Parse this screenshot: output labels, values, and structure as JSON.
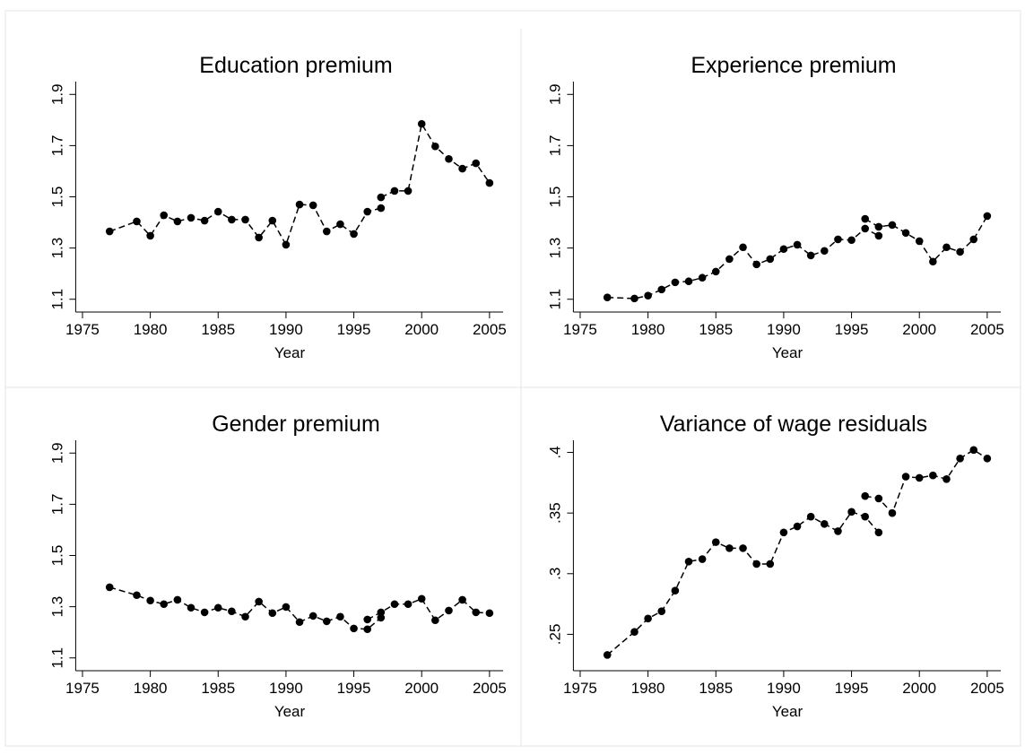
{
  "chart_data": [
    {
      "type": "line",
      "title": "Education premium",
      "x_label": "Year",
      "x": [
        1977,
        1979,
        1980,
        1981,
        1982,
        1983,
        1984,
        1985,
        1986,
        1987,
        1988,
        1989,
        1990,
        1991,
        1992,
        1993,
        1994,
        1995,
        1996,
        1997,
        null,
        1997,
        1998,
        1999,
        2000,
        2001,
        2002,
        2003,
        2004,
        2005
      ],
      "values": [
        1.365,
        1.404,
        1.348,
        1.428,
        1.404,
        1.418,
        1.407,
        1.442,
        1.411,
        1.411,
        1.341,
        1.407,
        1.313,
        1.47,
        1.467,
        1.365,
        1.393,
        1.355,
        1.442,
        1.456,
        null,
        1.498,
        1.523,
        1.523,
        1.785,
        1.697,
        1.648,
        1.61,
        1.631,
        1.554
      ],
      "color": "#000000",
      "xlim": [
        1974.5,
        2006
      ],
      "xticks": [
        1975,
        1980,
        1985,
        1990,
        1995,
        2000,
        2005
      ],
      "ylim": [
        1.05,
        1.95
      ],
      "yticks": [
        1.1,
        1.3,
        1.5,
        1.7,
        1.9
      ]
    },
    {
      "type": "line",
      "title": "Experience premium",
      "x_label": "Year",
      "x": [
        1977,
        1979,
        1980,
        1981,
        1982,
        1983,
        1984,
        1985,
        1986,
        1987,
        1988,
        1989,
        1990,
        1991,
        1992,
        1993,
        1994,
        1995,
        1996,
        1997,
        null,
        1996,
        1997,
        1998,
        1999,
        2000,
        2001,
        2002,
        2003,
        2004,
        2005
      ],
      "values": [
        1.107,
        1.103,
        1.114,
        1.138,
        1.166,
        1.17,
        1.184,
        1.208,
        1.257,
        1.303,
        1.236,
        1.257,
        1.296,
        1.313,
        1.271,
        1.289,
        1.334,
        1.331,
        1.376,
        1.348,
        null,
        1.414,
        1.383,
        1.39,
        1.359,
        1.327,
        1.247,
        1.303,
        1.285,
        1.334,
        1.425
      ],
      "color": "#000000",
      "xlim": [
        1974.5,
        2006
      ],
      "xticks": [
        1975,
        1980,
        1985,
        1990,
        1995,
        2000,
        2005
      ],
      "ylim": [
        1.05,
        1.95
      ],
      "yticks": [
        1.1,
        1.3,
        1.5,
        1.7,
        1.9
      ]
    },
    {
      "type": "line",
      "title": "Gender premium",
      "x_label": "Year",
      "x": [
        1977,
        1979,
        1980,
        1981,
        1982,
        1983,
        1984,
        1985,
        1986,
        1987,
        1988,
        1989,
        1990,
        1991,
        1992,
        1993,
        1994,
        1995,
        1996,
        1997,
        null,
        1996,
        1997,
        1998,
        1999,
        2000,
        2001,
        2002,
        2003,
        2004,
        2005
      ],
      "values": [
        1.376,
        1.345,
        1.324,
        1.31,
        1.327,
        1.296,
        1.278,
        1.296,
        1.282,
        1.261,
        1.32,
        1.275,
        1.299,
        1.24,
        1.264,
        1.243,
        1.261,
        1.215,
        1.212,
        1.257,
        null,
        1.25,
        1.278,
        1.31,
        1.31,
        1.331,
        1.247,
        1.285,
        1.327,
        1.278,
        1.275
      ],
      "color": "#000000",
      "xlim": [
        1974.5,
        2006
      ],
      "xticks": [
        1975,
        1980,
        1985,
        1990,
        1995,
        2000,
        2005
      ],
      "ylim": [
        1.05,
        1.95
      ],
      "yticks": [
        1.1,
        1.3,
        1.5,
        1.7,
        1.9
      ]
    },
    {
      "type": "line",
      "title": "Variance of wage residuals",
      "x_label": "Year",
      "x": [
        1977,
        1979,
        1980,
        1981,
        1982,
        1983,
        1984,
        1985,
        1986,
        1987,
        1988,
        1989,
        1990,
        1991,
        1992,
        1993,
        1994,
        1995,
        1996,
        1997,
        null,
        1996,
        1997,
        1998,
        1999,
        2000,
        2001,
        2002,
        2003,
        2004,
        2005
      ],
      "values": [
        0.233,
        0.252,
        0.263,
        0.269,
        0.286,
        0.31,
        0.312,
        0.326,
        0.321,
        0.321,
        0.308,
        0.308,
        0.334,
        0.339,
        0.347,
        0.341,
        0.335,
        0.351,
        0.347,
        0.334,
        null,
        0.364,
        0.362,
        0.35,
        0.38,
        0.379,
        0.381,
        0.378,
        0.395,
        0.402,
        0.395
      ],
      "color": "#000000",
      "xlim": [
        1974.5,
        2006
      ],
      "xticks": [
        1975,
        1980,
        1985,
        1990,
        1995,
        2000,
        2005
      ],
      "ylim": [
        0.22,
        0.41
      ],
      "yticks": [
        {
          "value": 0.25,
          "label": ".25"
        },
        {
          "value": 0.3,
          "label": ".3"
        },
        {
          "value": 0.35,
          "label": ".35"
        },
        {
          "value": 0.4,
          "label": ".4"
        }
      ]
    }
  ]
}
